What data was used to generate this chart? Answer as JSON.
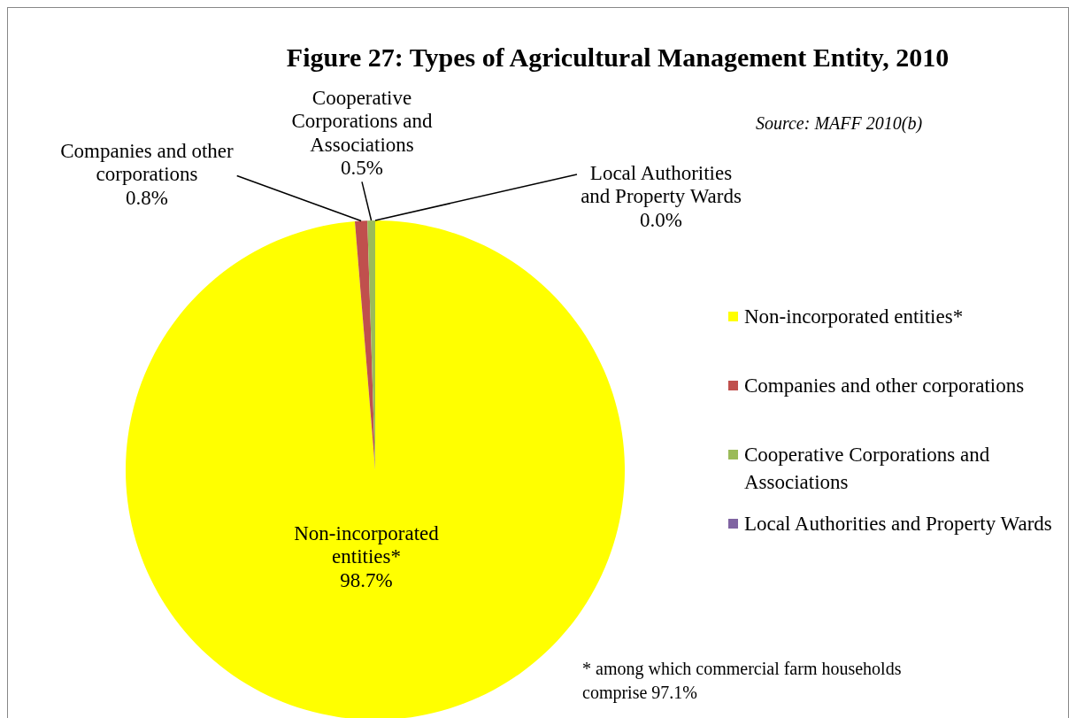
{
  "chart_data": {
    "type": "pie",
    "title": "Figure 27: Types of Agricultural Management Entity, 2010",
    "categories": [
      "Non-incorporated entities*",
      "Companies and other corporations",
      "Cooperative Corporations and Associations",
      "Local Authorities and Property Wards"
    ],
    "values": [
      98.7,
      0.8,
      0.5,
      0.0
    ],
    "colors": [
      "#ffff00",
      "#c0504d",
      "#9bbb59",
      "#8064a2"
    ],
    "value_labels": [
      "98.7%",
      "0.8%",
      "0.5%",
      "0.0%"
    ],
    "legend": "right",
    "annotations": [
      "Source: MAFF 2010(b)",
      "* among which commercial farm households comprise 97.1%"
    ]
  }
}
